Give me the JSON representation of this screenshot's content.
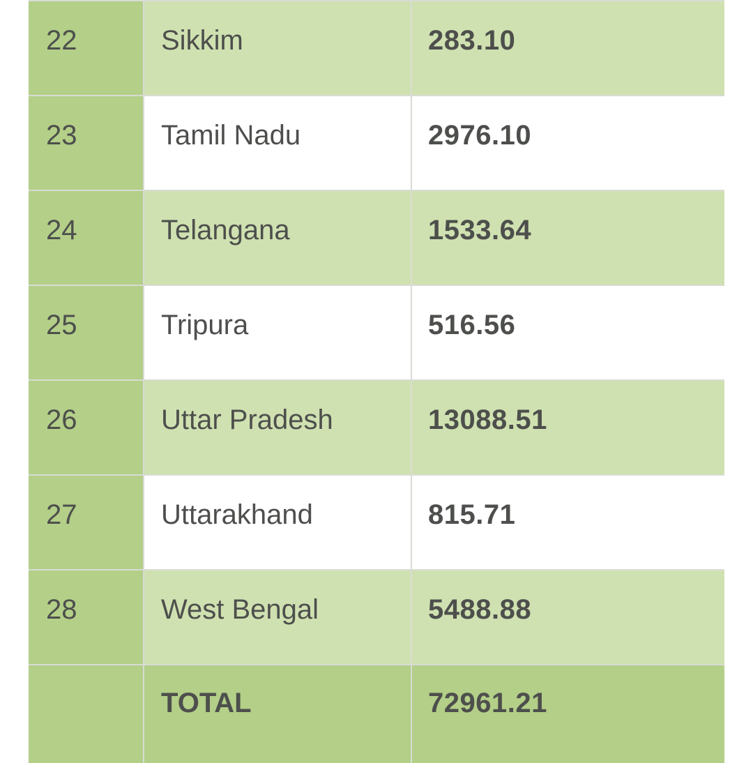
{
  "table": {
    "rows": [
      {
        "num": "22",
        "state": "Sikkim",
        "value": "283.10"
      },
      {
        "num": "23",
        "state": "Tamil Nadu",
        "value": "2976.10"
      },
      {
        "num": "24",
        "state": "Telangana",
        "value": "1533.64"
      },
      {
        "num": "25",
        "state": "Tripura",
        "value": "516.56"
      },
      {
        "num": "26",
        "state": "Uttar Pradesh",
        "value": "13088.51"
      },
      {
        "num": "27",
        "state": "Uttarakhand",
        "value": "815.71"
      },
      {
        "num": "28",
        "state": "West Bengal",
        "value": "5488.88"
      }
    ],
    "total": {
      "label": "TOTAL",
      "value": "72961.21"
    }
  },
  "colors": {
    "header_green": "#b3cf88",
    "row_green": "#d0e1b1",
    "row_white": "#ffffff",
    "text": "#4d4f4c",
    "border": "#d8dcd4"
  }
}
